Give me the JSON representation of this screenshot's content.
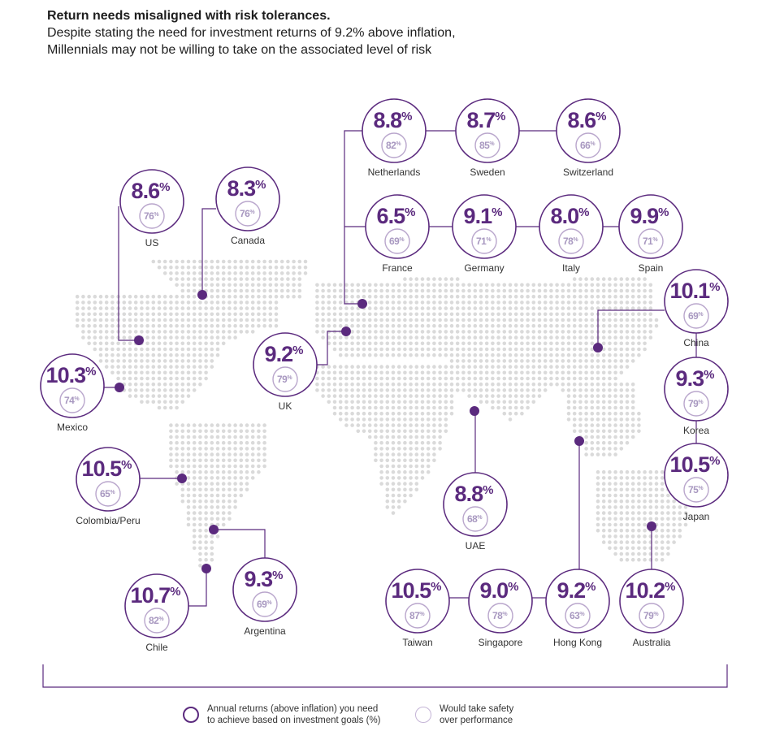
{
  "header": {
    "title": "Return needs misaligned with risk tolerances.",
    "subtitle_line1": "Despite stating the need for investment returns of 9.2% above inflation,",
    "subtitle_line2": "Millennials may not be willing to take on the associated level of risk"
  },
  "legend": {
    "returns_label_line1": "Annual returns (above inflation) you need",
    "returns_label_line2": "to achieve based on investment goals (%)",
    "safety_label_line1": "Would take safety",
    "safety_label_line2": "over performance"
  },
  "colors": {
    "primary": "#5b2a7e",
    "secondary": "#b9a6cc",
    "secondary_text": "#a898c0",
    "map_dots": "#dadada",
    "line": "#5b2a7e"
  },
  "chart_data": {
    "type": "table",
    "title": "Return needs misaligned with risk tolerances.",
    "unit": "%",
    "columns": [
      "Annual returns (above inflation) you need to achieve based on investment goals (%)",
      "Would take safety over performance"
    ],
    "countries": [
      {
        "name": "US",
        "returns": "8.6",
        "safety": "76"
      },
      {
        "name": "Canada",
        "returns": "8.3",
        "safety": "76"
      },
      {
        "name": "Mexico",
        "returns": "10.3",
        "safety": "74"
      },
      {
        "name": "Colombia/Peru",
        "returns": "10.5",
        "safety": "65"
      },
      {
        "name": "Chile",
        "returns": "10.7",
        "safety": "82"
      },
      {
        "name": "Argentina",
        "returns": "9.3",
        "safety": "69"
      },
      {
        "name": "UK",
        "returns": "9.2",
        "safety": "79"
      },
      {
        "name": "Netherlands",
        "returns": "8.8",
        "safety": "82"
      },
      {
        "name": "Sweden",
        "returns": "8.7",
        "safety": "85"
      },
      {
        "name": "Switzerland",
        "returns": "8.6",
        "safety": "66"
      },
      {
        "name": "France",
        "returns": "6.5",
        "safety": "69"
      },
      {
        "name": "Germany",
        "returns": "9.1",
        "safety": "71"
      },
      {
        "name": "Italy",
        "returns": "8.0",
        "safety": "78"
      },
      {
        "name": "Spain",
        "returns": "9.9",
        "safety": "71"
      },
      {
        "name": "China",
        "returns": "10.1",
        "safety": "69"
      },
      {
        "name": "Korea",
        "returns": "9.3",
        "safety": "79"
      },
      {
        "name": "Japan",
        "returns": "10.5",
        "safety": "75"
      },
      {
        "name": "UAE",
        "returns": "8.8",
        "safety": "68"
      },
      {
        "name": "Taiwan",
        "returns": "10.5",
        "safety": "87"
      },
      {
        "name": "Singapore",
        "returns": "9.0",
        "safety": "78"
      },
      {
        "name": "Hong Kong",
        "returns": "9.2",
        "safety": "63"
      },
      {
        "name": "Australia",
        "returns": "10.2",
        "safety": "79"
      }
    ]
  }
}
